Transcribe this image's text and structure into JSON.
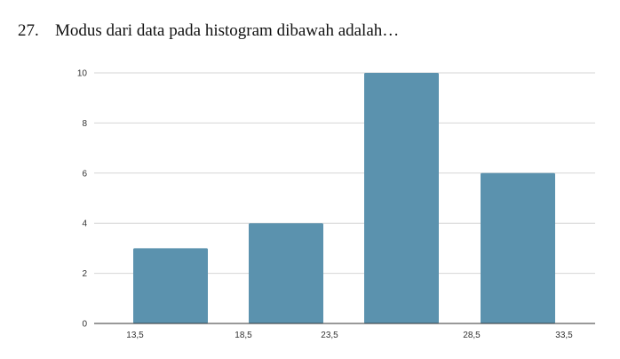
{
  "question": {
    "number": "27.",
    "text": "Modus dari data pada histogram dibawah adalah…"
  },
  "chart_data": {
    "type": "bar",
    "values": [
      3,
      4,
      10,
      6
    ],
    "bar_color": "#5b92ae",
    "ylim": [
      0,
      10
    ],
    "y_ticks": [
      "0",
      "2",
      "4",
      "6",
      "8",
      "10"
    ],
    "x_tick_labels": [
      "13,5",
      "18,5",
      "23,5",
      "28,5",
      "33,5"
    ],
    "grid": true,
    "legend": "none"
  }
}
